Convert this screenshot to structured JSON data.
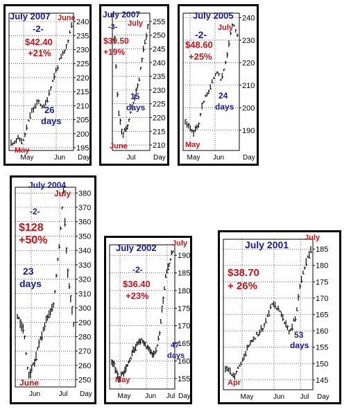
{
  "colors": {
    "text_blue": "#1a1a8c",
    "text_red": "#c0151b",
    "bars": "#000000",
    "grid": "#000000"
  },
  "chart_data": [
    {
      "type": "ohlc",
      "title": "July 2007",
      "wave_label": "-2-",
      "gain_dollar": "$42.40",
      "gain_percent": "+21%",
      "duration_number": "26",
      "duration_unit": "days",
      "start_label": "May",
      "end_label": "June",
      "x_ticks": [
        "May",
        "Jun",
        "Day"
      ],
      "y_ticks": [
        195,
        200,
        205,
        210,
        215,
        220,
        225,
        230,
        235,
        240
      ],
      "ylim": [
        194,
        243
      ],
      "start_value": 196.5,
      "end_value": 238.9,
      "grid": true
    },
    {
      "type": "ohlc",
      "title": "July 2007",
      "wave_label": "-3-",
      "gain_dollar": "$39.50",
      "gain_percent": "+19%",
      "duration_number": "15",
      "duration_unit": "days",
      "start_label": "June",
      "end_label": "July",
      "x_ticks": [
        "Jul",
        "Day"
      ],
      "y_ticks": [
        210,
        215,
        220,
        225,
        230,
        235,
        240,
        245,
        250,
        255
      ],
      "ylim": [
        208,
        258
      ],
      "start_value": 213.5,
      "end_value": 253,
      "grid": true
    },
    {
      "type": "ohlc",
      "title": "July 2005",
      "wave_label": "-2-",
      "gain_dollar": "$48.60",
      "gain_percent": "+25%",
      "duration_number": "24",
      "duration_unit": "days",
      "start_label": "May",
      "end_label": "July",
      "x_ticks": [
        "May",
        "Jun",
        "Day"
      ],
      "y_ticks": [
        190,
        200,
        210,
        220,
        230,
        240
      ],
      "ylim": [
        181,
        242
      ],
      "start_value": 188.4,
      "end_value": 237,
      "grid": true
    },
    {
      "type": "ohlc",
      "title": "July 2004",
      "wave_label": "-2-",
      "gain_dollar": "$128",
      "gain_percent": "+50%",
      "duration_number": "23",
      "duration_unit": "days",
      "start_label": "June",
      "end_label": "July",
      "x_ticks": [
        "Jun",
        "Jul",
        "Day"
      ],
      "y_ticks": [
        250,
        260,
        270,
        280,
        290,
        300,
        310,
        320,
        330,
        340,
        350,
        360,
        370,
        380
      ],
      "ylim": [
        245,
        384
      ],
      "start_value": 252,
      "end_value": 380,
      "grid": true
    },
    {
      "type": "ohlc",
      "title": "July 2002",
      "wave_label": "-2-",
      "gain_dollar": "$36.40",
      "gain_percent": "+23%",
      "duration_number": "47",
      "duration_unit": "days",
      "start_label": "May",
      "end_label": "July",
      "x_ticks": [
        "May",
        "Jun",
        "Jul",
        "Day"
      ],
      "y_ticks": [
        155,
        160,
        165,
        170,
        175,
        180,
        185,
        190
      ],
      "ylim": [
        152,
        193
      ],
      "start_value": 155.2,
      "end_value": 191.6,
      "grid": true
    },
    {
      "type": "ohlc",
      "title": "July 2001",
      "wave_label": "",
      "gain_dollar": "$38.70",
      "gain_percent": "+ 26%",
      "duration_number": "53",
      "duration_unit": "days",
      "start_label": "Apr",
      "end_label": "July",
      "x_ticks": [
        "May",
        "Jun",
        "Jul",
        "Day"
      ],
      "y_ticks": [
        145,
        150,
        155,
        160,
        165,
        170,
        175,
        180,
        185
      ],
      "ylim": [
        142,
        188
      ],
      "start_value": 146,
      "end_value": 184.7,
      "grid": true
    }
  ]
}
